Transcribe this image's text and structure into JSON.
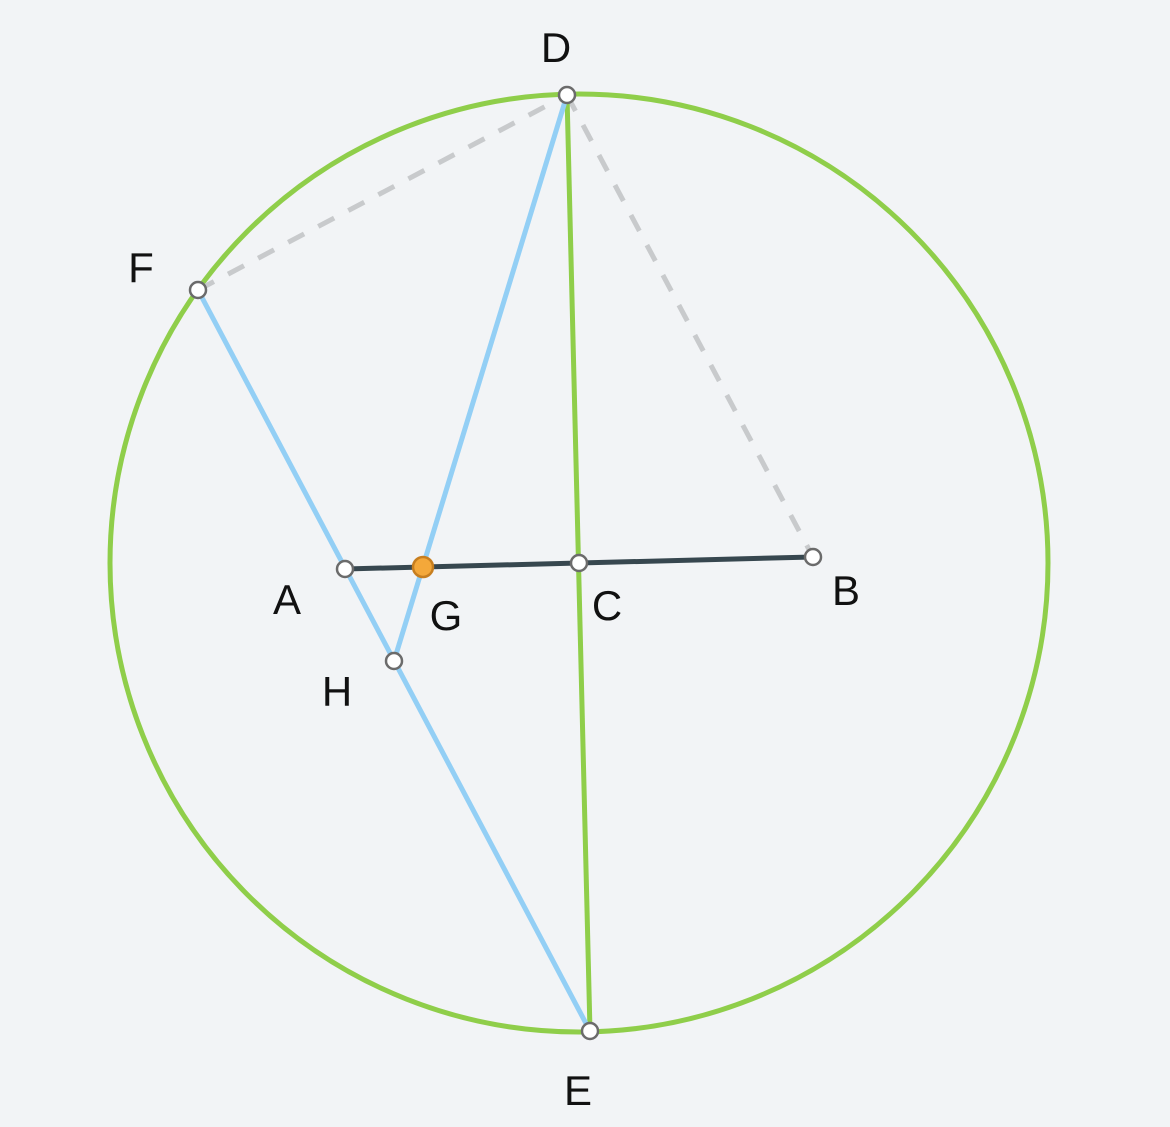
{
  "diagram": {
    "points": {
      "A": {
        "label": "A"
      },
      "B": {
        "label": "B"
      },
      "C": {
        "label": "C"
      },
      "D": {
        "label": "D"
      },
      "E": {
        "label": "E"
      },
      "F": {
        "label": "F"
      },
      "G": {
        "label": "G"
      },
      "H": {
        "label": "H"
      }
    },
    "colors": {
      "circle": "#8fce4a",
      "chord_DE": "#8fce4a",
      "blue_lines": "#93cff5",
      "segment_AB": "#37474f",
      "dashed_lines": "#c8cacc",
      "point_fill": "#ffffff",
      "point_stroke": "#6b6b6b",
      "highlight_point_fill": "#f4a83a",
      "highlight_point_stroke": "#c77e1f",
      "background": "#f2f4f6"
    }
  }
}
